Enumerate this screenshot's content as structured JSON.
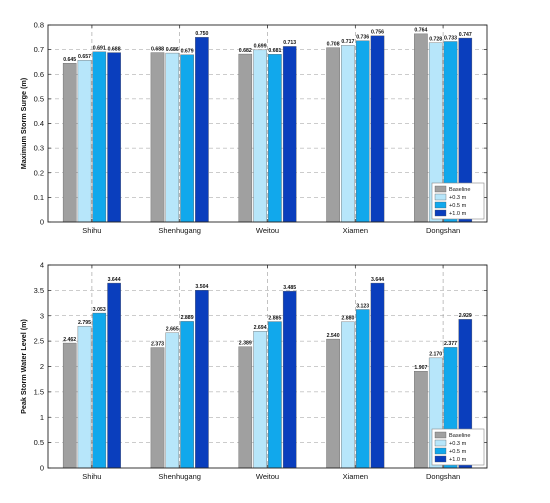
{
  "colors": {
    "baseline": "#a0a0a0",
    "p03": "#b7e6fa",
    "p05": "#11a8ec",
    "p10": "#0a3ebd",
    "grid": "#9a9a9a"
  },
  "chart_data": [
    {
      "type": "bar",
      "ylabel": "Maximum Storm Surge (m)",
      "ylim": [
        0,
        0.8
      ],
      "yticks": [
        "0",
        "0.1",
        "0.2",
        "0.3",
        "0.4",
        "0.5",
        "0.6",
        "0.7",
        "0.8"
      ],
      "categories": [
        "Shihu",
        "Shenhugang",
        "Weitou",
        "Xiamen",
        "Dongshan"
      ],
      "series": [
        {
          "name": "Baseline",
          "values": [
            0.645,
            0.688,
            0.682,
            0.708,
            0.764
          ],
          "labels": [
            "0.645",
            "0.688",
            "0.682",
            "0.708",
            "0.764"
          ]
        },
        {
          "name": "+0.3 m",
          "values": [
            0.657,
            0.686,
            0.699,
            0.717,
            0.728
          ],
          "labels": [
            "0.657",
            "0.686",
            "0.699",
            "0.717",
            "0.728"
          ]
        },
        {
          "name": "+0.5 m",
          "values": [
            0.691,
            0.679,
            0.681,
            0.736,
            0.733
          ],
          "labels": [
            "0.691",
            "0.679",
            "0.681",
            "0.736",
            "0.733"
          ]
        },
        {
          "name": "+1.0 m",
          "values": [
            0.688,
            0.75,
            0.713,
            0.756,
            0.747
          ],
          "labels": [
            "0.688",
            "0.750",
            "0.713",
            "0.756",
            "0.747"
          ]
        }
      ],
      "grid": true,
      "legend": "bottom-right"
    },
    {
      "type": "bar",
      "ylabel": "Peak Storm Water Level (m)",
      "ylim": [
        0,
        4
      ],
      "yticks": [
        "0",
        "0.5",
        "1",
        "1.5",
        "2",
        "2.5",
        "3",
        "3.5",
        "4"
      ],
      "categories": [
        "Shihu",
        "Shenhugang",
        "Weitou",
        "Xiamen",
        "Dongshan"
      ],
      "series": [
        {
          "name": "Baseline",
          "values": [
            2.462,
            2.373,
            2.389,
            2.54,
            1.907
          ],
          "labels": [
            "2.462",
            "2.373",
            "2.389",
            "2.540",
            "1.907"
          ]
        },
        {
          "name": "+0.3 m",
          "values": [
            2.795,
            2.665,
            2.694,
            2.88,
            2.17
          ],
          "labels": [
            "2.795",
            "2.665",
            "2.694",
            "2.880",
            "2.170"
          ]
        },
        {
          "name": "+0.5 m",
          "values": [
            3.053,
            2.889,
            2.885,
            3.123,
            2.377
          ],
          "labels": [
            "3.053",
            "2.889",
            "2.885",
            "3.123",
            "2.377"
          ]
        },
        {
          "name": "+1.0 m",
          "values": [
            3.644,
            3.504,
            3.485,
            3.644,
            2.929
          ],
          "labels": [
            "3.644",
            "3.504",
            "3.485",
            "3.644",
            "2.929"
          ]
        }
      ],
      "grid": true,
      "legend": "bottom-right"
    }
  ]
}
